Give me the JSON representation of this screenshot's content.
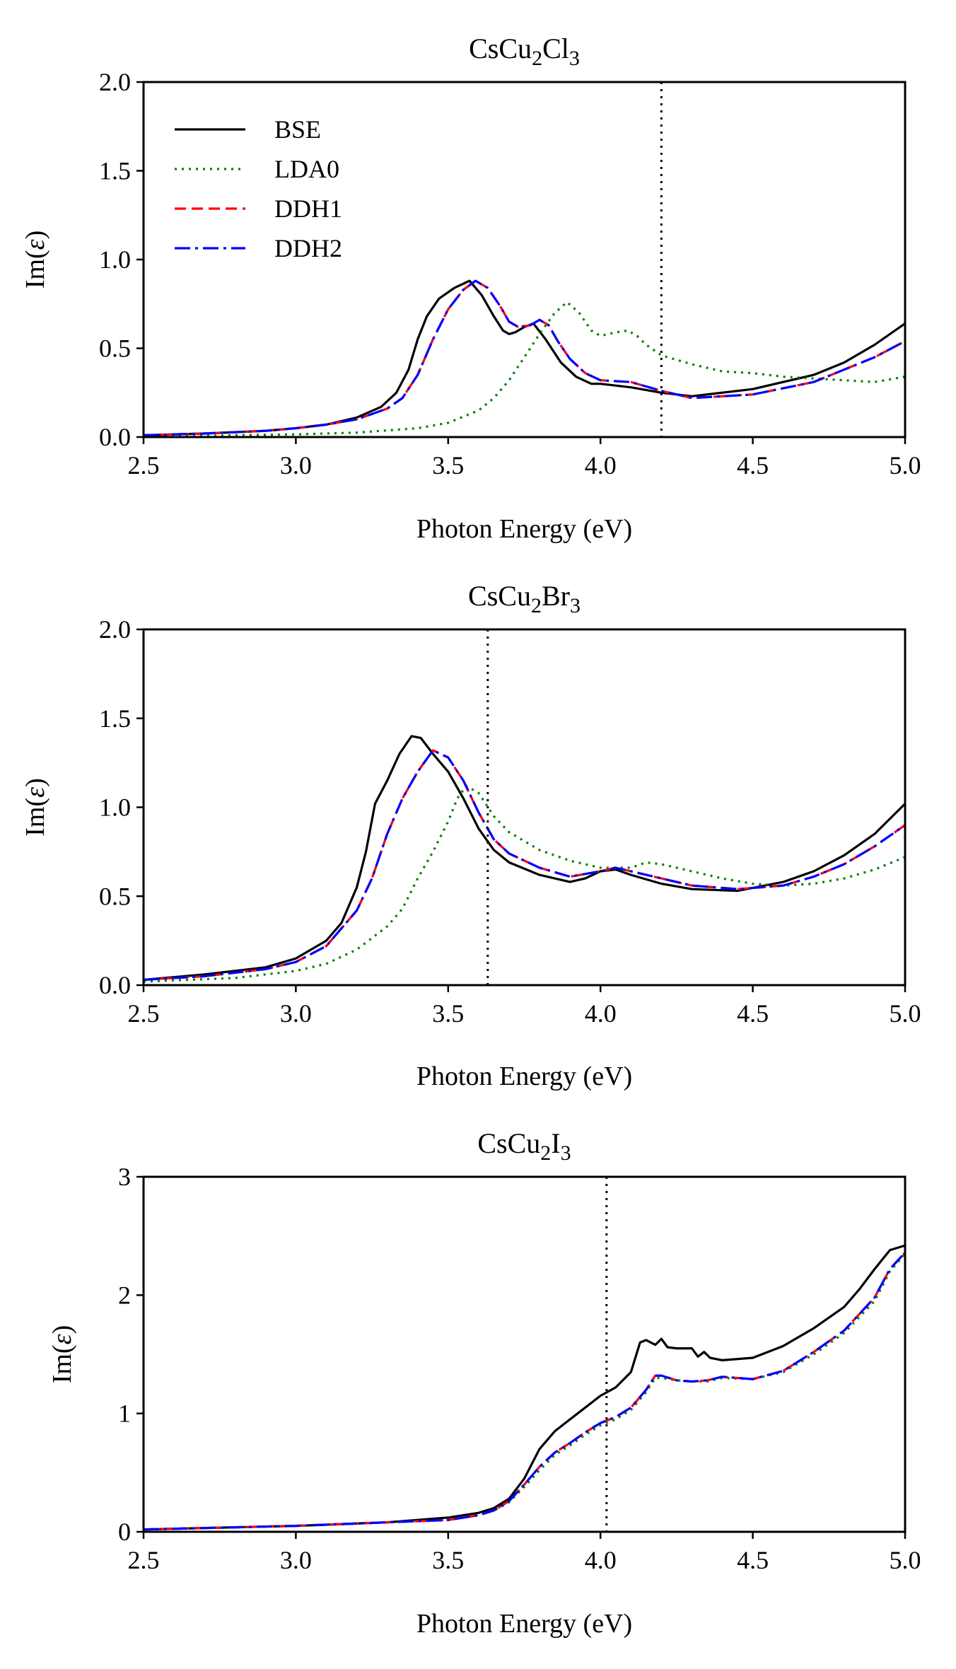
{
  "chart_data": [
    {
      "type": "line",
      "title": "CsCu2Cl3",
      "title_parts": {
        "a": "CsCu",
        "b": "2",
        "c": "Cl",
        "d": "3"
      },
      "xlabel": "Photon Energy (eV)",
      "ylabel": "Im(ε)",
      "ylabel_parts": {
        "a": "Im(",
        "b": "ε",
        "c": ")"
      },
      "xlim": [
        2.5,
        5.0
      ],
      "ylim": [
        0.0,
        2.0
      ],
      "xticks": [
        2.5,
        3.0,
        3.5,
        4.0,
        4.5,
        5.0
      ],
      "xtick_labels": [
        "2.5",
        "3.0",
        "3.5",
        "4.0",
        "4.5",
        "5.0"
      ],
      "yticks": [
        0.0,
        0.5,
        1.0,
        1.5,
        2.0
      ],
      "ytick_labels": [
        "0.0",
        "0.5",
        "1.0",
        "1.5",
        "2.0"
      ],
      "vline": 4.2,
      "legend": [
        "BSE",
        "LDA0",
        "DDH1",
        "DDH2"
      ],
      "legend_position": "top-left",
      "series": [
        {
          "name": "BSE",
          "style": "solid",
          "color": "#000000",
          "x": [
            2.5,
            2.7,
            2.9,
            3.0,
            3.1,
            3.2,
            3.28,
            3.33,
            3.37,
            3.4,
            3.43,
            3.47,
            3.52,
            3.57,
            3.61,
            3.65,
            3.68,
            3.7,
            3.72,
            3.75,
            3.78,
            3.82,
            3.87,
            3.92,
            3.97,
            4.0,
            4.1,
            4.2,
            4.3,
            4.5,
            4.7,
            4.8,
            4.9,
            5.0
          ],
          "y": [
            0.01,
            0.02,
            0.035,
            0.05,
            0.07,
            0.11,
            0.17,
            0.25,
            0.38,
            0.55,
            0.68,
            0.78,
            0.84,
            0.88,
            0.8,
            0.68,
            0.6,
            0.58,
            0.59,
            0.62,
            0.64,
            0.55,
            0.42,
            0.34,
            0.3,
            0.3,
            0.28,
            0.25,
            0.23,
            0.27,
            0.35,
            0.42,
            0.52,
            0.64
          ]
        },
        {
          "name": "LDA0",
          "style": "dotted",
          "color": "#008000",
          "x": [
            2.5,
            2.8,
            3.0,
            3.2,
            3.4,
            3.5,
            3.6,
            3.65,
            3.7,
            3.75,
            3.8,
            3.85,
            3.89,
            3.93,
            3.97,
            4.0,
            4.05,
            4.09,
            4.12,
            4.15,
            4.2,
            4.3,
            4.4,
            4.5,
            4.6,
            4.7,
            4.8,
            4.9,
            5.0
          ],
          "y": [
            0.0,
            0.01,
            0.015,
            0.025,
            0.05,
            0.08,
            0.15,
            0.22,
            0.32,
            0.45,
            0.58,
            0.7,
            0.76,
            0.7,
            0.6,
            0.57,
            0.59,
            0.6,
            0.57,
            0.52,
            0.46,
            0.41,
            0.37,
            0.36,
            0.34,
            0.33,
            0.32,
            0.31,
            0.34
          ]
        },
        {
          "name": "DDH1",
          "style": "dashed",
          "color": "#ff0000",
          "x": [
            2.5,
            2.7,
            2.9,
            3.0,
            3.1,
            3.2,
            3.3,
            3.35,
            3.4,
            3.45,
            3.5,
            3.55,
            3.59,
            3.63,
            3.67,
            3.7,
            3.73,
            3.77,
            3.8,
            3.83,
            3.86,
            3.9,
            3.95,
            4.0,
            4.1,
            4.2,
            4.3,
            4.5,
            4.7,
            4.9,
            5.0
          ],
          "y": [
            0.01,
            0.02,
            0.035,
            0.05,
            0.07,
            0.1,
            0.16,
            0.22,
            0.35,
            0.55,
            0.72,
            0.83,
            0.88,
            0.84,
            0.74,
            0.65,
            0.62,
            0.63,
            0.66,
            0.63,
            0.54,
            0.44,
            0.36,
            0.32,
            0.31,
            0.26,
            0.22,
            0.24,
            0.31,
            0.45,
            0.54
          ]
        },
        {
          "name": "DDH2",
          "style": "dashdot",
          "color": "#0000ff",
          "x": [
            2.5,
            2.7,
            2.9,
            3.0,
            3.1,
            3.2,
            3.3,
            3.35,
            3.4,
            3.45,
            3.5,
            3.55,
            3.59,
            3.63,
            3.67,
            3.7,
            3.73,
            3.77,
            3.8,
            3.83,
            3.86,
            3.9,
            3.95,
            4.0,
            4.1,
            4.2,
            4.3,
            4.5,
            4.7,
            4.9,
            5.0
          ],
          "y": [
            0.01,
            0.02,
            0.035,
            0.05,
            0.07,
            0.1,
            0.16,
            0.22,
            0.35,
            0.55,
            0.72,
            0.83,
            0.88,
            0.84,
            0.74,
            0.65,
            0.62,
            0.63,
            0.66,
            0.63,
            0.54,
            0.44,
            0.36,
            0.32,
            0.31,
            0.26,
            0.22,
            0.24,
            0.31,
            0.45,
            0.54
          ]
        }
      ]
    },
    {
      "type": "line",
      "title": "CsCu2Br3",
      "title_parts": {
        "a": "CsCu",
        "b": "2",
        "c": "Br",
        "d": "3"
      },
      "xlabel": "Photon Energy (eV)",
      "ylabel": "Im(ε)",
      "ylabel_parts": {
        "a": "Im(",
        "b": "ε",
        "c": ")"
      },
      "xlim": [
        2.5,
        5.0
      ],
      "ylim": [
        0.0,
        2.0
      ],
      "xticks": [
        2.5,
        3.0,
        3.5,
        4.0,
        4.5,
        5.0
      ],
      "xtick_labels": [
        "2.5",
        "3.0",
        "3.5",
        "4.0",
        "4.5",
        "5.0"
      ],
      "yticks": [
        0.0,
        0.5,
        1.0,
        1.5,
        2.0
      ],
      "ytick_labels": [
        "0.0",
        "0.5",
        "1.0",
        "1.5",
        "2.0"
      ],
      "vline": 3.63,
      "series": [
        {
          "name": "BSE",
          "style": "solid",
          "color": "#000000",
          "x": [
            2.5,
            2.7,
            2.9,
            3.0,
            3.1,
            3.15,
            3.2,
            3.23,
            3.26,
            3.3,
            3.34,
            3.38,
            3.41,
            3.45,
            3.5,
            3.55,
            3.6,
            3.65,
            3.7,
            3.8,
            3.9,
            3.95,
            4.0,
            4.05,
            4.1,
            4.2,
            4.3,
            4.45,
            4.6,
            4.7,
            4.8,
            4.9,
            5.0
          ],
          "y": [
            0.03,
            0.06,
            0.1,
            0.15,
            0.25,
            0.35,
            0.55,
            0.75,
            1.02,
            1.15,
            1.3,
            1.4,
            1.39,
            1.3,
            1.2,
            1.05,
            0.88,
            0.76,
            0.69,
            0.62,
            0.58,
            0.6,
            0.64,
            0.65,
            0.62,
            0.57,
            0.54,
            0.53,
            0.58,
            0.64,
            0.73,
            0.85,
            1.02
          ]
        },
        {
          "name": "LDA0",
          "style": "dotted",
          "color": "#008000",
          "x": [
            2.5,
            2.8,
            3.0,
            3.1,
            3.2,
            3.3,
            3.35,
            3.4,
            3.45,
            3.5,
            3.53,
            3.56,
            3.6,
            3.65,
            3.7,
            3.8,
            3.9,
            4.0,
            4.1,
            4.15,
            4.2,
            4.3,
            4.4,
            4.5,
            4.6,
            4.7,
            4.8,
            4.9,
            5.0
          ],
          "y": [
            0.02,
            0.04,
            0.08,
            0.12,
            0.2,
            0.33,
            0.43,
            0.6,
            0.75,
            0.92,
            1.05,
            1.12,
            1.08,
            0.95,
            0.86,
            0.76,
            0.7,
            0.66,
            0.66,
            0.69,
            0.68,
            0.64,
            0.6,
            0.57,
            0.56,
            0.57,
            0.6,
            0.65,
            0.72
          ]
        },
        {
          "name": "DDH1",
          "style": "dashed",
          "color": "#ff0000",
          "x": [
            2.5,
            2.7,
            2.9,
            3.0,
            3.1,
            3.2,
            3.25,
            3.3,
            3.35,
            3.4,
            3.45,
            3.5,
            3.55,
            3.6,
            3.65,
            3.7,
            3.8,
            3.9,
            4.0,
            4.05,
            4.1,
            4.2,
            4.3,
            4.45,
            4.6,
            4.7,
            4.8,
            4.9,
            5.0
          ],
          "y": [
            0.03,
            0.05,
            0.09,
            0.13,
            0.22,
            0.42,
            0.6,
            0.85,
            1.05,
            1.2,
            1.32,
            1.28,
            1.15,
            0.97,
            0.82,
            0.74,
            0.66,
            0.61,
            0.64,
            0.66,
            0.64,
            0.6,
            0.56,
            0.54,
            0.56,
            0.61,
            0.68,
            0.78,
            0.9
          ]
        },
        {
          "name": "DDH2",
          "style": "dashdot",
          "color": "#0000ff",
          "x": [
            2.5,
            2.7,
            2.9,
            3.0,
            3.1,
            3.2,
            3.25,
            3.3,
            3.35,
            3.4,
            3.45,
            3.5,
            3.55,
            3.6,
            3.65,
            3.7,
            3.8,
            3.9,
            4.0,
            4.05,
            4.1,
            4.2,
            4.3,
            4.45,
            4.6,
            4.7,
            4.8,
            4.9,
            5.0
          ],
          "y": [
            0.03,
            0.05,
            0.09,
            0.13,
            0.22,
            0.42,
            0.6,
            0.85,
            1.05,
            1.2,
            1.32,
            1.28,
            1.15,
            0.97,
            0.82,
            0.74,
            0.66,
            0.61,
            0.64,
            0.66,
            0.64,
            0.6,
            0.56,
            0.54,
            0.56,
            0.61,
            0.68,
            0.78,
            0.9
          ]
        }
      ]
    },
    {
      "type": "line",
      "title": "CsCu2I3",
      "title_parts": {
        "a": "CsCu",
        "b": "2",
        "c": "I",
        "d": "3"
      },
      "xlabel": "Photon Energy (eV)",
      "ylabel": "Im(ε)",
      "ylabel_parts": {
        "a": "Im(",
        "b": "ε",
        "c": ")"
      },
      "xlim": [
        2.5,
        5.0
      ],
      "ylim": [
        0,
        3
      ],
      "xticks": [
        2.5,
        3.0,
        3.5,
        4.0,
        4.5,
        5.0
      ],
      "xtick_labels": [
        "2.5",
        "3.0",
        "3.5",
        "4.0",
        "4.5",
        "5.0"
      ],
      "yticks": [
        0,
        1,
        2,
        3
      ],
      "ytick_labels": [
        "0",
        "1",
        "2",
        "3"
      ],
      "vline": 4.02,
      "series": [
        {
          "name": "BSE",
          "style": "solid",
          "color": "#000000",
          "x": [
            2.5,
            3.0,
            3.3,
            3.5,
            3.6,
            3.65,
            3.7,
            3.75,
            3.8,
            3.85,
            3.9,
            3.95,
            4.0,
            4.05,
            4.1,
            4.13,
            4.15,
            4.18,
            4.2,
            4.22,
            4.25,
            4.3,
            4.32,
            4.34,
            4.36,
            4.4,
            4.5,
            4.6,
            4.7,
            4.8,
            4.85,
            4.9,
            4.95,
            5.0
          ],
          "y": [
            0.02,
            0.05,
            0.08,
            0.12,
            0.16,
            0.2,
            0.28,
            0.45,
            0.7,
            0.85,
            0.95,
            1.05,
            1.15,
            1.22,
            1.35,
            1.6,
            1.62,
            1.58,
            1.63,
            1.56,
            1.55,
            1.55,
            1.48,
            1.52,
            1.47,
            1.45,
            1.47,
            1.57,
            1.72,
            1.9,
            2.05,
            2.22,
            2.38,
            2.42
          ]
        },
        {
          "name": "LDA0",
          "style": "dotted",
          "color": "#008000",
          "x": [
            2.5,
            3.0,
            3.3,
            3.5,
            3.6,
            3.65,
            3.7,
            3.75,
            3.8,
            3.85,
            3.9,
            3.95,
            4.0,
            4.05,
            4.1,
            4.15,
            4.18,
            4.2,
            4.25,
            4.3,
            4.35,
            4.4,
            4.5,
            4.6,
            4.7,
            4.8,
            4.9,
            4.95,
            5.0
          ],
          "y": [
            0.02,
            0.05,
            0.08,
            0.1,
            0.14,
            0.18,
            0.25,
            0.38,
            0.52,
            0.65,
            0.73,
            0.82,
            0.9,
            0.95,
            1.03,
            1.18,
            1.3,
            1.3,
            1.28,
            1.27,
            1.27,
            1.3,
            1.29,
            1.35,
            1.5,
            1.68,
            1.95,
            2.2,
            2.35
          ]
        },
        {
          "name": "DDH1",
          "style": "dashed",
          "color": "#ff0000",
          "x": [
            2.5,
            3.0,
            3.3,
            3.5,
            3.6,
            3.65,
            3.7,
            3.75,
            3.8,
            3.85,
            3.9,
            3.95,
            4.0,
            4.05,
            4.1,
            4.15,
            4.18,
            4.2,
            4.25,
            4.3,
            4.35,
            4.4,
            4.5,
            4.6,
            4.7,
            4.8,
            4.9,
            4.95,
            5.0
          ],
          "y": [
            0.02,
            0.05,
            0.08,
            0.1,
            0.14,
            0.18,
            0.26,
            0.4,
            0.55,
            0.67,
            0.75,
            0.84,
            0.92,
            0.97,
            1.05,
            1.2,
            1.32,
            1.32,
            1.28,
            1.27,
            1.28,
            1.31,
            1.29,
            1.36,
            1.52,
            1.7,
            1.98,
            2.22,
            2.36
          ]
        },
        {
          "name": "DDH2",
          "style": "dashdot",
          "color": "#0000ff",
          "x": [
            2.5,
            3.0,
            3.3,
            3.5,
            3.6,
            3.65,
            3.7,
            3.75,
            3.8,
            3.85,
            3.9,
            3.95,
            4.0,
            4.05,
            4.1,
            4.15,
            4.18,
            4.2,
            4.25,
            4.3,
            4.35,
            4.4,
            4.5,
            4.6,
            4.7,
            4.8,
            4.9,
            4.95,
            5.0
          ],
          "y": [
            0.02,
            0.05,
            0.08,
            0.1,
            0.14,
            0.18,
            0.26,
            0.4,
            0.55,
            0.67,
            0.75,
            0.84,
            0.92,
            0.97,
            1.05,
            1.2,
            1.32,
            1.32,
            1.28,
            1.27,
            1.28,
            1.31,
            1.29,
            1.36,
            1.52,
            1.7,
            1.98,
            2.22,
            2.36
          ]
        }
      ]
    }
  ]
}
